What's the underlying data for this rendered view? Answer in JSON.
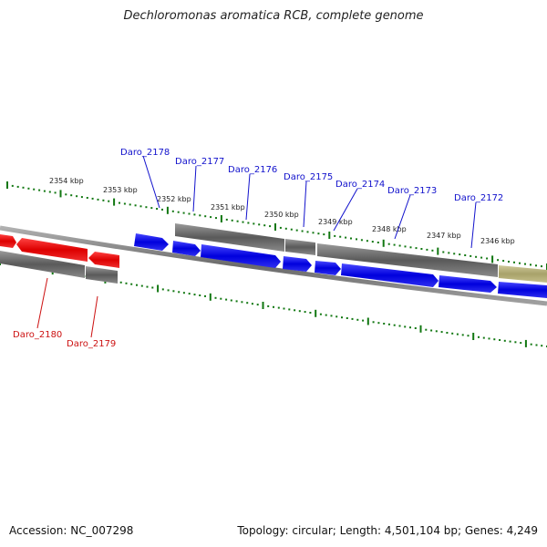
{
  "title": "Dechloromonas aromatica RCB, complete genome",
  "footer": {
    "accession": "Accession: NC_007298",
    "summary": "Topology: circular; Length: 4,501,104 bp; Genes: 4,249"
  },
  "colors": {
    "forward_gene": "#1010ee",
    "reverse_gene": "#ee1111",
    "gray_feature": "#7a7a7a",
    "tan_feature": "#b8b27a",
    "tick": "#117711",
    "blue_label": "#1111cc",
    "red_label": "#cc1111"
  },
  "kbp_labels": [
    "2354 kbp",
    "2353 kbp",
    "2352 kbp",
    "2351 kbp",
    "2350 kbp",
    "2349 kbp",
    "2348 kbp",
    "2347 kbp",
    "2346 kbp"
  ],
  "gene_labels_top": [
    "Daro_2178",
    "Daro_2177",
    "Daro_2176",
    "Daro_2175",
    "Daro_2174",
    "Daro_2173",
    "Daro_2172"
  ],
  "gene_labels_bottom": [
    "Daro_2180",
    "Daro_2179"
  ]
}
